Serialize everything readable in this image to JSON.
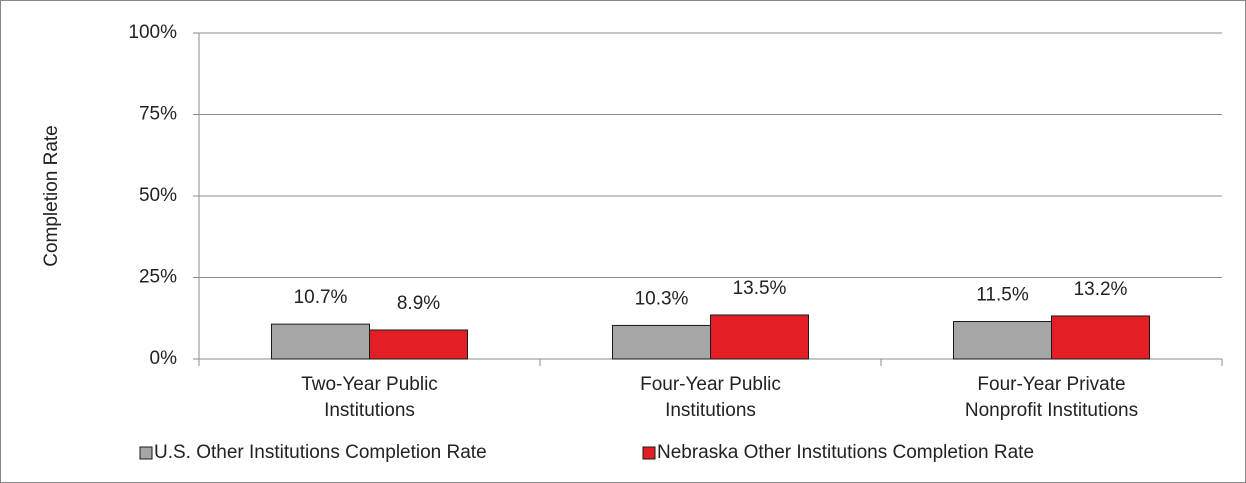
{
  "chart_data": {
    "type": "bar",
    "y_label": "Completion Rate",
    "categories": [
      [
        "Two-Year Public",
        "Institutions"
      ],
      [
        "Four-Year Public",
        "Institutions"
      ],
      [
        "Four-Year Private",
        "Nonprofit Institutions"
      ]
    ],
    "series": [
      {
        "name": "U.S. Other Institutions Completion Rate",
        "color": "#a6a6a6",
        "values": [
          10.7,
          10.3,
          11.5
        ],
        "value_labels": [
          "10.7%",
          "10.3%",
          "11.5%"
        ]
      },
      {
        "name": "Nebraska Other Institutions Completion Rate",
        "color": "#e31e24",
        "values": [
          8.9,
          13.5,
          13.2
        ],
        "value_labels": [
          "8.9%",
          "13.5%",
          "13.2%"
        ]
      }
    ],
    "ylim": [
      0,
      100
    ],
    "yticks": [
      {
        "value": 0,
        "label": "0%"
      },
      {
        "value": 25,
        "label": "25%"
      },
      {
        "value": 50,
        "label": "50%"
      },
      {
        "value": 75,
        "label": "75%"
      },
      {
        "value": 100,
        "label": "100%"
      }
    ],
    "grid": true,
    "legend": "bottom"
  }
}
